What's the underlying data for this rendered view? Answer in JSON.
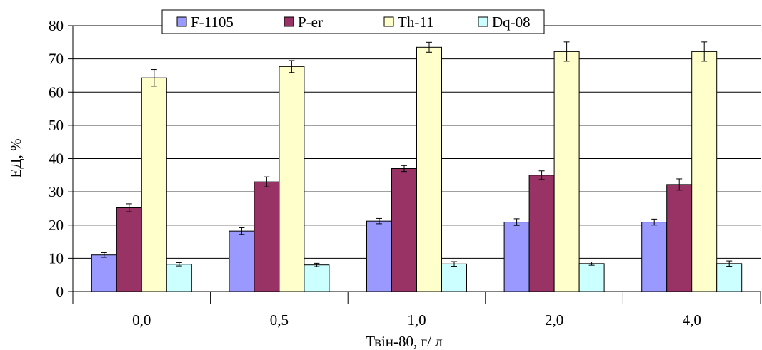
{
  "chart_data": {
    "type": "bar",
    "categories": [
      "0,0",
      "0,5",
      "1,0",
      "2,0",
      "4,0"
    ],
    "series": [
      {
        "name": "F-1105",
        "color": "#9999ff",
        "values": [
          11.0,
          18.2,
          21.2,
          20.9,
          20.9
        ],
        "errors": [
          0.7,
          1.0,
          0.8,
          1.0,
          0.9
        ]
      },
      {
        "name": "P-er",
        "color": "#993366",
        "values": [
          25.2,
          33.0,
          37.0,
          35.0,
          32.2
        ],
        "errors": [
          1.2,
          1.5,
          0.9,
          1.3,
          1.7
        ]
      },
      {
        "name": "Th-11",
        "color": "#ffffcc",
        "values": [
          64.3,
          67.7,
          73.5,
          72.2,
          72.2
        ],
        "errors": [
          2.5,
          1.8,
          1.5,
          2.9,
          2.9
        ]
      },
      {
        "name": "Dq-08",
        "color": "#ccffff",
        "values": [
          8.2,
          8.0,
          8.3,
          8.4,
          8.4
        ],
        "errors": [
          0.5,
          0.5,
          0.7,
          0.5,
          0.8
        ]
      }
    ],
    "yticks": [
      "0",
      "10",
      "20",
      "30",
      "40",
      "50",
      "60",
      "70",
      "80"
    ],
    "ylim": [
      0,
      80
    ],
    "xlabel": "Твін-80, г/ л",
    "ylabel": "ЕД, %",
    "grid": true,
    "legend_position": "top"
  }
}
